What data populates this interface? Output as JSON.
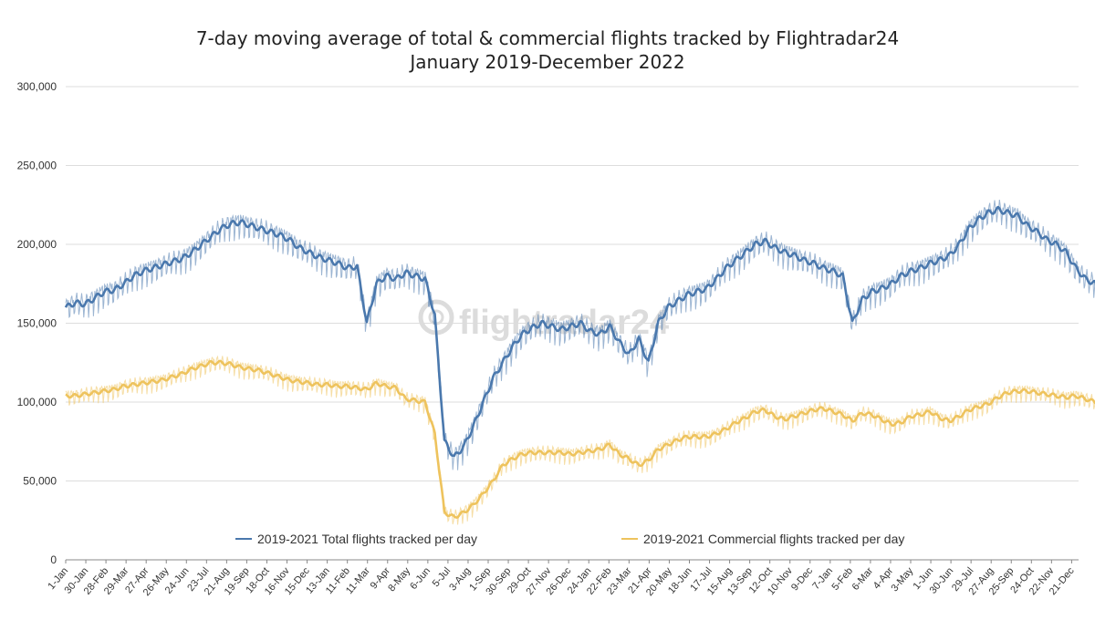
{
  "chart_data": {
    "type": "line",
    "title": "7-day moving average of total & commercial flights tracked by Flightradar24",
    "subtitle": "January 2019-December 2022",
    "watermark": "flightradar24",
    "ylim": [
      0,
      300000
    ],
    "y_ticks": [
      {
        "value": 0,
        "label": "0"
      },
      {
        "value": 50000,
        "label": "50,000"
      },
      {
        "value": 100000,
        "label": "100,000"
      },
      {
        "value": 150000,
        "label": "150,000"
      },
      {
        "value": 200000,
        "label": "200,000"
      },
      {
        "value": 250000,
        "label": "250,000"
      },
      {
        "value": 300000,
        "label": "300,000"
      }
    ],
    "grid": "horizontal",
    "legend_position": "bottom-inside",
    "x_ticks": [
      "1-Jan",
      "30-Jan",
      "28-Feb",
      "29-Mar",
      "27-Apr",
      "26-May",
      "24-Jun",
      "23-Jul",
      "21-Aug",
      "19-Sep",
      "18-Oct",
      "16-Nov",
      "15-Dec",
      "13-Jan",
      "11-Feb",
      "11-Mar",
      "9-Apr",
      "8-May",
      "6-Jun",
      "5-Jul",
      "3-Aug",
      "1-Sep",
      "30-Sep",
      "29-Oct",
      "27-Nov",
      "26-Dec",
      "24-Jan",
      "22-Feb",
      "23-Mar",
      "21-Apr",
      "20-May",
      "18-Jun",
      "17-Jul",
      "15-Aug",
      "13-Sep",
      "12-Oct",
      "10-Nov",
      "9-Dec",
      "7-Jan",
      "5-Feb",
      "6-Mar",
      "4-Apr",
      "3-May",
      "1-Jun",
      "30-Jun",
      "29-Jul",
      "27-Aug",
      "25-Sep",
      "24-Oct",
      "22-Nov",
      "21-Dec"
    ],
    "tick_interval_days": 29,
    "series": [
      {
        "name": "2019-2021 Total flights tracked per day",
        "color": "#4a78ad",
        "x_start": "2019-01-01",
        "x_step_days": 14,
        "values": [
          160000,
          163000,
          162000,
          166000,
          170000,
          171000,
          175000,
          180000,
          183000,
          185000,
          187000,
          189000,
          191000,
          195000,
          200000,
          205000,
          210000,
          213000,
          214000,
          212000,
          210000,
          208000,
          206000,
          203000,
          198000,
          195000,
          192000,
          190000,
          188000,
          185000,
          186000,
          150000,
          175000,
          180000,
          178000,
          182000,
          180000,
          178000,
          155000,
          75000,
          65000,
          72000,
          85000,
          100000,
          115000,
          125000,
          135000,
          143000,
          147000,
          150000,
          148000,
          146000,
          148000,
          150000,
          145000,
          143000,
          148000,
          138000,
          130000,
          140000,
          125000,
          150000,
          160000,
          164000,
          168000,
          170000,
          172000,
          178000,
          185000,
          190000,
          195000,
          200000,
          202000,
          198000,
          195000,
          193000,
          190000,
          188000,
          185000,
          183000,
          180000,
          150000,
          165000,
          170000,
          172000,
          175000,
          180000,
          183000,
          185000,
          188000,
          190000,
          193000,
          200000,
          210000,
          216000,
          220000,
          222000,
          220000,
          218000,
          212000,
          208000,
          203000,
          200000,
          195000,
          185000,
          178000,
          175000,
          148000,
          152000
        ],
        "noise_amplitude": 9000
      },
      {
        "name": "2019-2021 Commercial flights tracked per day",
        "color": "#eec35d",
        "x_start": "2019-01-01",
        "x_step_days": 14,
        "values": [
          104000,
          104000,
          105000,
          106000,
          107000,
          108000,
          110000,
          111000,
          112000,
          113000,
          114000,
          116000,
          118000,
          121000,
          123000,
          125000,
          125000,
          124000,
          122000,
          121000,
          120000,
          118000,
          116000,
          114000,
          113000,
          112000,
          111000,
          111000,
          110000,
          110000,
          109000,
          108000,
          112000,
          110000,
          109000,
          102000,
          101000,
          100000,
          80000,
          30000,
          27000,
          30000,
          35000,
          42000,
          50000,
          60000,
          64000,
          67000,
          68000,
          68000,
          68000,
          68000,
          67000,
          68000,
          69000,
          70000,
          73000,
          67000,
          64000,
          60000,
          63000,
          70000,
          73000,
          76000,
          78000,
          78000,
          78000,
          80000,
          83000,
          87000,
          90000,
          94000,
          95000,
          91000,
          89000,
          91000,
          93000,
          95000,
          96000,
          94000,
          92000,
          88000,
          93000,
          92000,
          89000,
          86000,
          87000,
          91000,
          92000,
          94000,
          90000,
          88000,
          91000,
          95000,
          97000,
          99000,
          103000,
          106000,
          107000,
          107000,
          106000,
          105000,
          104000,
          103000,
          104000,
          102000,
          100000,
          98000,
          94000
        ],
        "noise_amplitude": 6000
      }
    ]
  }
}
